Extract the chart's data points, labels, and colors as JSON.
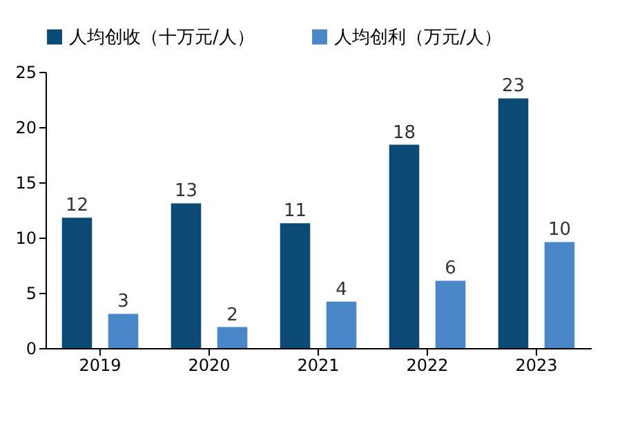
{
  "chart_data": {
    "type": "bar",
    "categories": [
      "2019",
      "2020",
      "2021",
      "2022",
      "2023"
    ],
    "series": [
      {
        "name": "人均创收（十万元/人）",
        "color": "#0b4a74",
        "values": [
          11.8,
          13.1,
          11.3,
          18.4,
          22.6
        ],
        "value_labels": [
          "12",
          "13",
          "11",
          "18",
          "23"
        ]
      },
      {
        "name": "人均创利（万元/人）",
        "color": "#4a87c9",
        "values": [
          3.1,
          1.9,
          4.2,
          6.1,
          9.6
        ],
        "value_labels": [
          "3",
          "2",
          "4",
          "6",
          "10"
        ]
      }
    ],
    "ylim": [
      0,
      25
    ],
    "yticks": [
      0,
      5,
      10,
      15,
      20,
      25
    ],
    "grid": false,
    "legend": "top"
  }
}
